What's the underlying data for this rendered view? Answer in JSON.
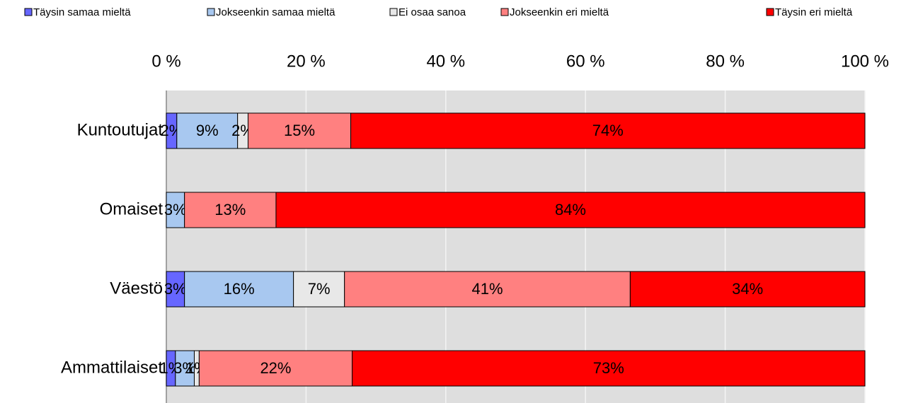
{
  "chart_data": {
    "type": "stacked-bar-horizontal",
    "categories": [
      "Kuntoutujat",
      "Omaiset",
      "Väestö",
      "Ammattilaiset"
    ],
    "series": [
      {
        "name": "Täysin samaa mieltä",
        "color": "#6666ff",
        "values": [
          1.5,
          0,
          2.6,
          1.3
        ],
        "value_labels": [
          "2%",
          null,
          "3%",
          "1%"
        ]
      },
      {
        "name": "Jokseenkin samaa mieltä",
        "color": "#a8c8f0",
        "values": [
          8.7,
          2.6,
          15.6,
          2.7
        ],
        "value_labels": [
          "9%",
          "3%",
          "16%",
          "3%"
        ]
      },
      {
        "name": "Ei osaa sanoa",
        "color": "#e8e8e8",
        "values": [
          1.5,
          0,
          7.3,
          0.7
        ],
        "value_labels": [
          "2%",
          null,
          "7%",
          "1%"
        ]
      },
      {
        "name": "Jokseenkin eri mieltä",
        "color": "#ff8080",
        "values": [
          14.7,
          13.1,
          40.9,
          21.9
        ],
        "value_labels": [
          "15%",
          "13%",
          "41%",
          "22%"
        ]
      },
      {
        "name": "Täysin eri mieltä",
        "color": "#ff0000",
        "values": [
          73.6,
          84.3,
          33.6,
          73.4
        ],
        "value_labels": [
          "74%",
          "84%",
          "34%",
          "73%"
        ]
      }
    ],
    "xlim": [
      0,
      100
    ],
    "xticks": [
      {
        "value": 0,
        "label": "0 %"
      },
      {
        "value": 20,
        "label": "20 %"
      },
      {
        "value": 40,
        "label": "40 %"
      },
      {
        "value": 60,
        "label": "60 %"
      },
      {
        "value": 80,
        "label": "80 %"
      },
      {
        "value": 100,
        "label": "100 %"
      }
    ],
    "grid": true,
    "legend": "top"
  }
}
